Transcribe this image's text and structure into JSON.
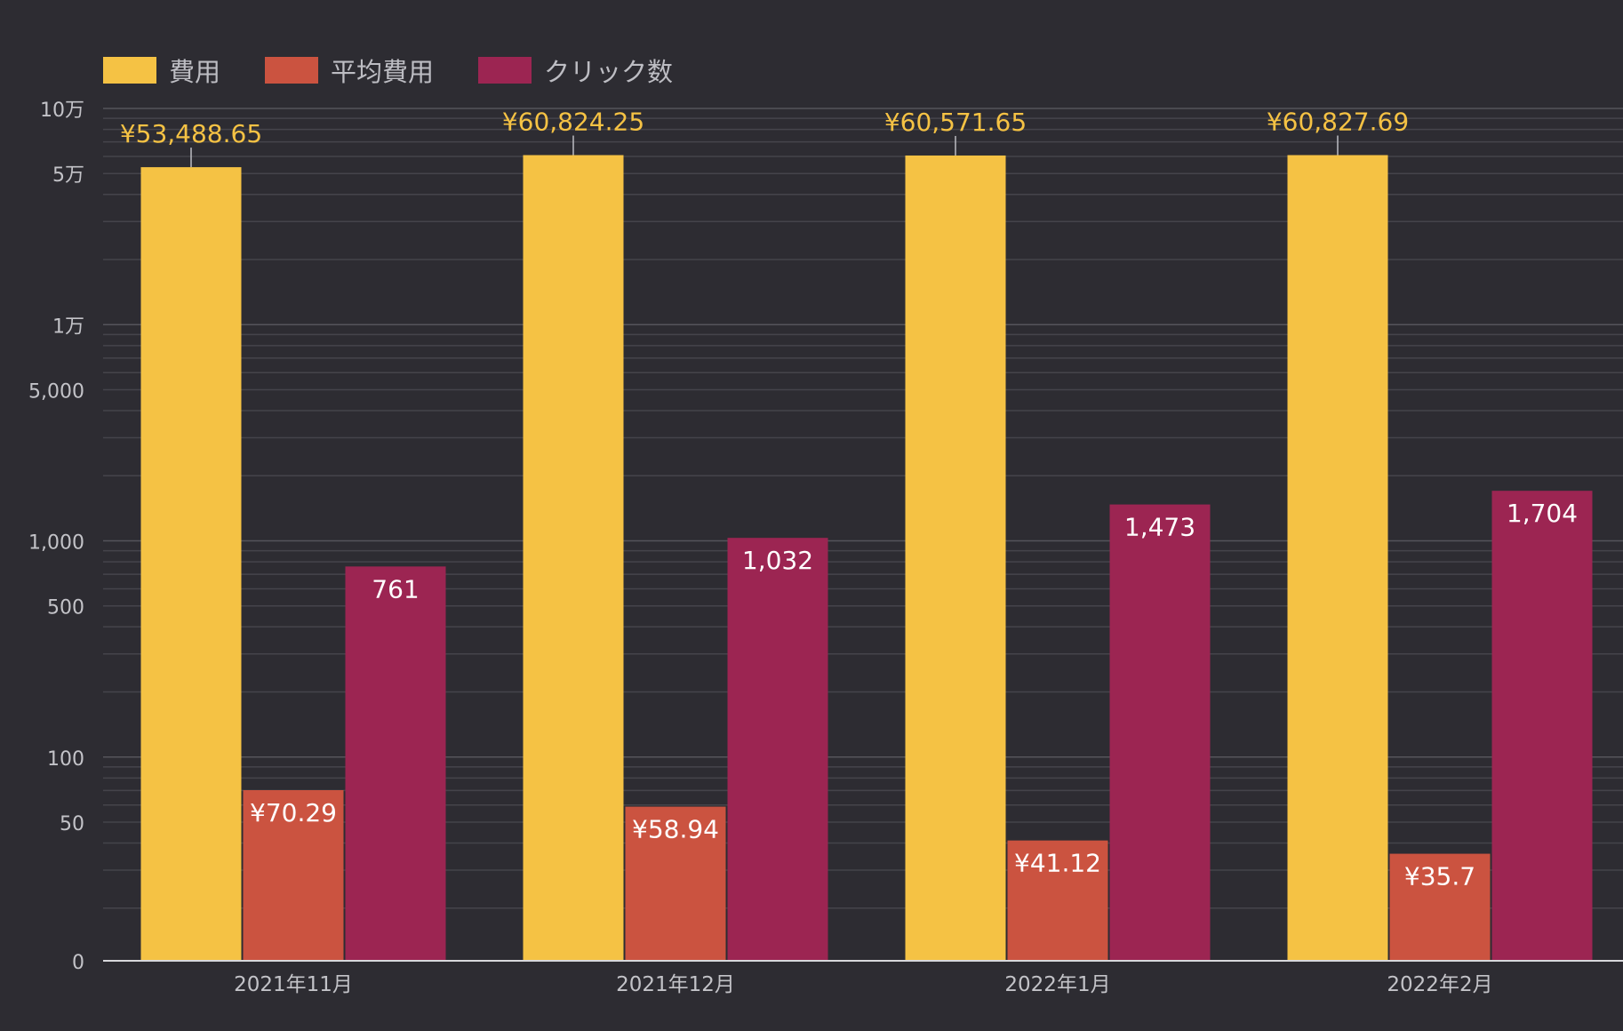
{
  "chart_data": {
    "type": "bar",
    "scale": "log",
    "categories": [
      "2021年11月",
      "2021年12月",
      "2022年1月",
      "2022年2月"
    ],
    "series": [
      {
        "name": "費用",
        "color": "#f5c244",
        "values": [
          53488.65,
          60824.25,
          60571.65,
          60827.69
        ],
        "labels": [
          "¥53,488.65",
          "¥60,824.25",
          "¥60,571.65",
          "¥60,827.69"
        ]
      },
      {
        "name": "平均費用",
        "color": "#cb5340",
        "values": [
          70.29,
          58.94,
          41.12,
          35.7
        ],
        "labels": [
          "¥70.29",
          "¥58.94",
          "¥41.12",
          "¥35.7"
        ]
      },
      {
        "name": "クリック数",
        "color": "#9c2552",
        "values": [
          761,
          1032,
          1473,
          1704
        ],
        "labels": [
          "761",
          "1,032",
          "1,473",
          "1,704"
        ]
      }
    ],
    "y_ticks": [
      {
        "value": 100000,
        "label": "10万"
      },
      {
        "value": 50000,
        "label": "5万"
      },
      {
        "value": 10000,
        "label": "1万"
      },
      {
        "value": 5000,
        "label": "5,000"
      },
      {
        "value": 1000,
        "label": "1,000"
      },
      {
        "value": 500,
        "label": "500"
      },
      {
        "value": 100,
        "label": "100"
      },
      {
        "value": 50,
        "label": "50"
      },
      {
        "value": 0,
        "label": "0"
      }
    ],
    "ylim": [
      0,
      100000
    ],
    "grid": true,
    "legend_position": "top-left"
  }
}
